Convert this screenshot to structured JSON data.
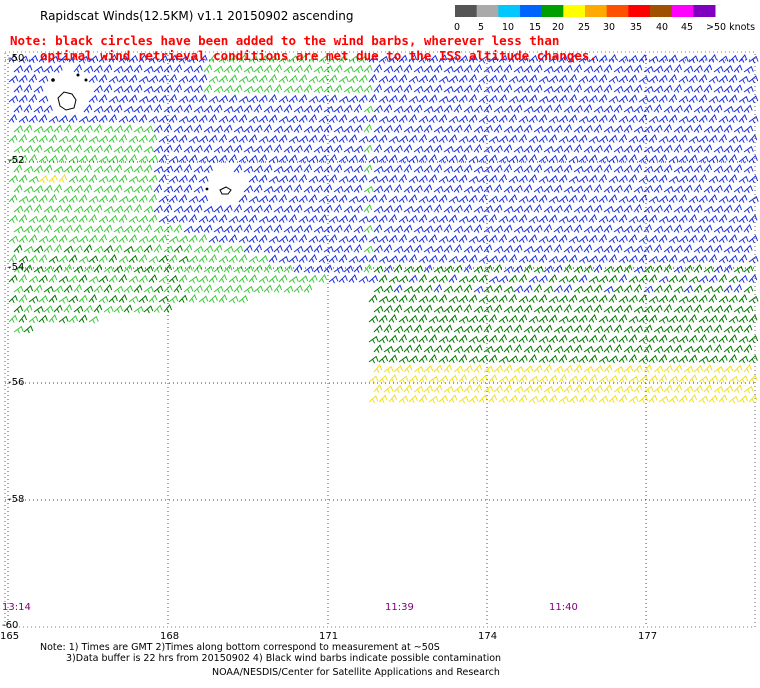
{
  "title": "Rapidscat Winds(12.5KM) v1.1 20150902 ascending",
  "note_line1": "Note: black circles have been added to the wind barbs, wherever less than",
  "note_line2": "optimal wind retrieval conditions are met due to the ISS altitude changes.",
  "speed_scale": {
    "labels": [
      "0",
      "5",
      "10",
      "15",
      "20",
      "25",
      "30",
      "35",
      "40",
      "45",
      ">50 knots"
    ],
    "colors": [
      "#555555",
      "#aaaaaa",
      "#00c8ff",
      "#0064ff",
      "#00a000",
      "#ffff00",
      "#ffaa00",
      "#ff5000",
      "#ff0000",
      "#a05000",
      "#ff00ff",
      "#8000c0"
    ]
  },
  "latitudes": [
    "-50",
    "-52",
    "-54",
    "-56",
    "-58",
    "-60"
  ],
  "longitudes": [
    "165",
    "168",
    "171",
    "174",
    "177"
  ],
  "times": [
    "13:14",
    "11:39",
    "11:40"
  ],
  "footer": {
    "line1": "Note: 1) Times are GMT 2)Times along bottom correspond to measurement at ~50S",
    "line2": "3)Data buffer is 22 hrs from 20150902 4) Black wind barbs indicate possible contamination",
    "line3": "NOAA/NESDIS/Center for Satellite Applications and Research"
  },
  "colors": {
    "blue": "#1a2ee0",
    "green": "#3cc83c",
    "dark_green": "#007800",
    "yellow": "#f0e020",
    "grid": "#000000"
  }
}
